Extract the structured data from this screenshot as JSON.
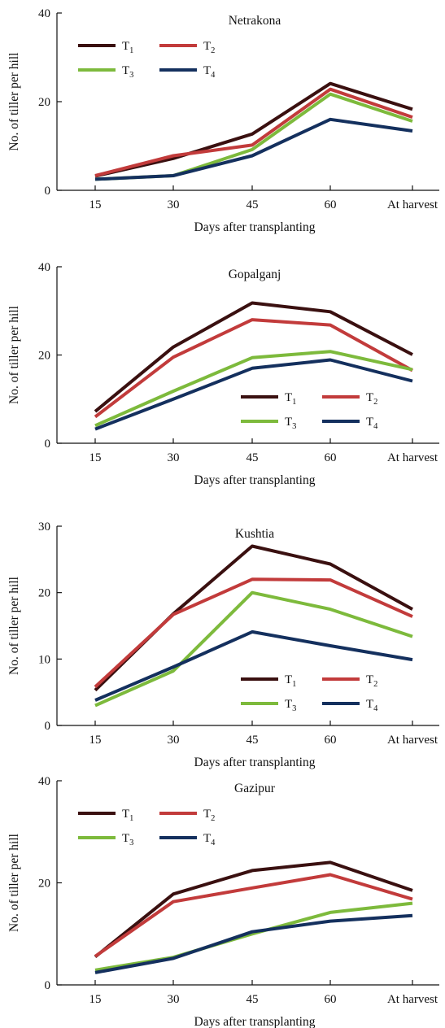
{
  "chart_data": [
    {
      "type": "line",
      "title": "Netrakona",
      "xlabel": "Days after transplanting",
      "ylabel": "No. of tiller per hill",
      "categories": [
        "15",
        "30",
        "45",
        "60",
        "At harvest"
      ],
      "ylim": [
        0,
        40
      ],
      "yticks": [
        0,
        20,
        40
      ],
      "legend_placement": "top-left",
      "series": [
        {
          "name": "T1",
          "name_base": "T",
          "name_sub": "1",
          "color": "#3a1010",
          "values": [
            3.2,
            7.2,
            12.7,
            24.1,
            18.3
          ]
        },
        {
          "name": "T2",
          "name_base": "T",
          "name_sub": "2",
          "color": "#c23b3b",
          "values": [
            3.3,
            7.8,
            10.2,
            22.8,
            16.5
          ]
        },
        {
          "name": "T3",
          "name_base": "T",
          "name_sub": "3",
          "color": "#7dba3c",
          "values": [
            2.5,
            3.3,
            9.2,
            21.7,
            15.6
          ]
        },
        {
          "name": "T4",
          "name_base": "T",
          "name_sub": "4",
          "color": "#14305e",
          "values": [
            2.5,
            3.3,
            7.8,
            16.0,
            13.4
          ]
        }
      ]
    },
    {
      "type": "line",
      "title": "Gopalganj",
      "xlabel": "Days after transplanting",
      "ylabel": "No. of tiller per hill",
      "categories": [
        "15",
        "30",
        "45",
        "60",
        "At harvest"
      ],
      "ylim": [
        0,
        40
      ],
      "yticks": [
        0,
        20,
        40
      ],
      "legend_placement": "bottom-right",
      "series": [
        {
          "name": "T1",
          "name_base": "T",
          "name_sub": "1",
          "color": "#3a1010",
          "values": [
            7.2,
            21.8,
            31.8,
            29.8,
            20.1
          ]
        },
        {
          "name": "T2",
          "name_base": "T",
          "name_sub": "2",
          "color": "#c23b3b",
          "values": [
            6.0,
            19.5,
            28.0,
            26.8,
            16.5
          ]
        },
        {
          "name": "T3",
          "name_base": "T",
          "name_sub": "3",
          "color": "#7dba3c",
          "values": [
            4.0,
            11.8,
            19.4,
            20.8,
            16.7
          ]
        },
        {
          "name": "T4",
          "name_base": "T",
          "name_sub": "4",
          "color": "#14305e",
          "values": [
            3.2,
            10.0,
            17.0,
            18.9,
            14.1
          ]
        }
      ]
    },
    {
      "type": "line",
      "title": "Kushtia",
      "xlabel": "Days after transplanting",
      "ylabel": "No. of tiller per hill",
      "categories": [
        "15",
        "30",
        "45",
        "60",
        "At harvest"
      ],
      "ylim": [
        0,
        30
      ],
      "yticks": [
        0,
        10,
        20,
        30
      ],
      "legend_placement": "bottom-right",
      "series": [
        {
          "name": "T1",
          "name_base": "T",
          "name_sub": "1",
          "color": "#3a1010",
          "values": [
            5.3,
            16.8,
            27.0,
            24.3,
            17.5
          ]
        },
        {
          "name": "T2",
          "name_base": "T",
          "name_sub": "2",
          "color": "#c23b3b",
          "values": [
            5.8,
            16.7,
            22.0,
            21.9,
            16.4
          ]
        },
        {
          "name": "T3",
          "name_base": "T",
          "name_sub": "3",
          "color": "#7dba3c",
          "values": [
            3.0,
            8.2,
            20.0,
            17.5,
            13.4
          ]
        },
        {
          "name": "T4",
          "name_base": "T",
          "name_sub": "4",
          "color": "#14305e",
          "values": [
            3.8,
            8.8,
            14.1,
            12.0,
            9.9
          ]
        }
      ]
    },
    {
      "type": "line",
      "title": "Gazipur",
      "xlabel": "Days after transplanting",
      "ylabel": "No. of tiller per hill",
      "categories": [
        "15",
        "30",
        "45",
        "60",
        "At harvest"
      ],
      "ylim": [
        0,
        40
      ],
      "yticks": [
        0,
        20,
        40
      ],
      "legend_placement": "top-left",
      "series": [
        {
          "name": "T1",
          "name_base": "T",
          "name_sub": "1",
          "color": "#3a1010",
          "values": [
            5.5,
            17.8,
            22.4,
            24.0,
            18.5
          ]
        },
        {
          "name": "T2",
          "name_base": "T",
          "name_sub": "2",
          "color": "#c23b3b",
          "values": [
            5.6,
            16.3,
            19.0,
            21.6,
            16.8
          ]
        },
        {
          "name": "T3",
          "name_base": "T",
          "name_sub": "3",
          "color": "#7dba3c",
          "values": [
            2.9,
            5.4,
            10.0,
            14.2,
            16.0
          ]
        },
        {
          "name": "T4",
          "name_base": "T",
          "name_sub": "4",
          "color": "#14305e",
          "values": [
            2.4,
            5.2,
            10.4,
            12.5,
            13.6
          ]
        }
      ]
    }
  ]
}
